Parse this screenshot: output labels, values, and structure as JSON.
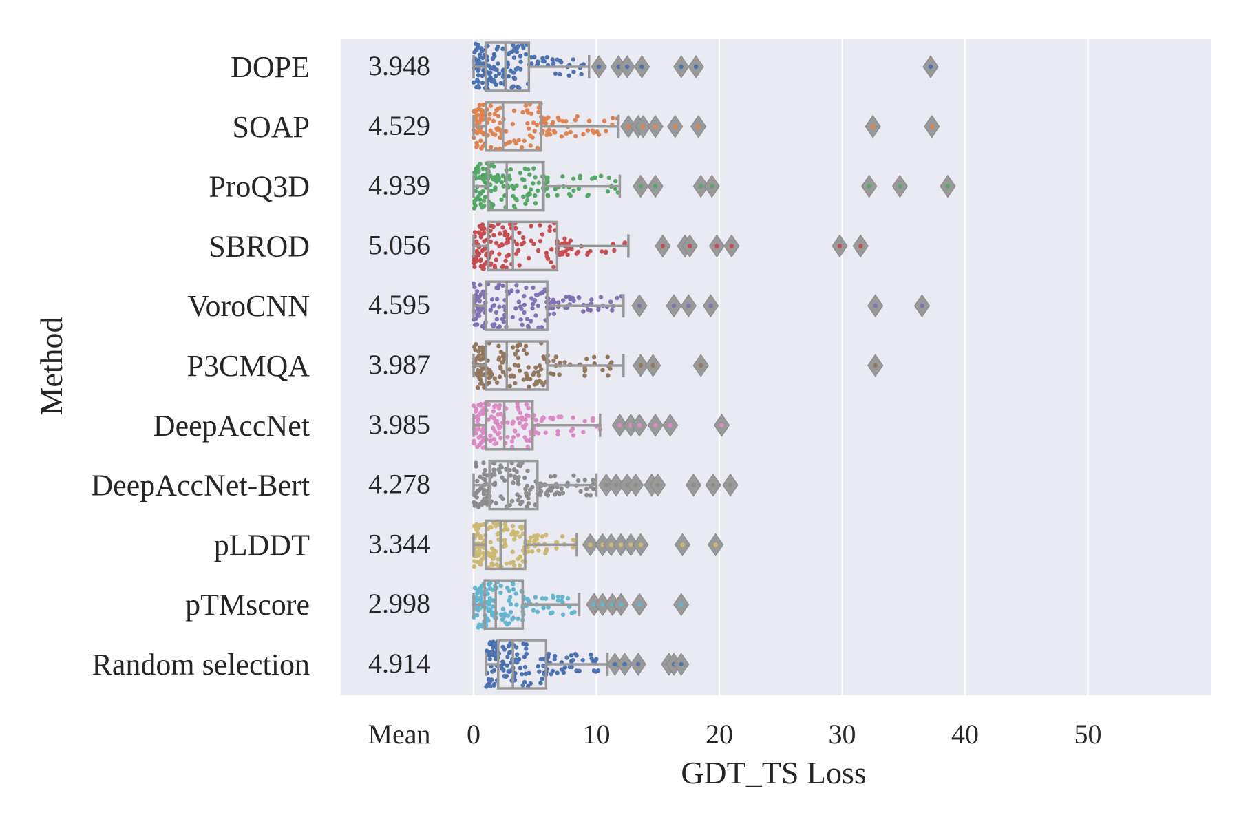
{
  "chart_data": {
    "type": "boxplot",
    "xlabel": "GDT_TS Loss",
    "ylabel": "Method",
    "mean_header": "Mean",
    "xlim": [
      -2,
      60
    ],
    "xticks": [
      0,
      10,
      20,
      30,
      40,
      50
    ],
    "grid": true,
    "background": "#eaeaf2",
    "box_color": "#999999",
    "series": [
      {
        "name": "DOPE",
        "mean_label": "3.948",
        "color": "#4c72b0",
        "q1": 1.0,
        "median": 2.6,
        "q3": 4.5,
        "whisker_low": 0,
        "whisker_high": 9.4,
        "outliers": [
          10.2,
          11.8,
          12.5,
          13.7,
          16.9,
          18.1,
          37.2
        ]
      },
      {
        "name": "SOAP",
        "mean_label": "4.529",
        "color": "#dd8452",
        "q1": 1.0,
        "median": 2.4,
        "q3": 5.5,
        "whisker_low": 0,
        "whisker_high": 11.8,
        "outliers": [
          12.6,
          13.4,
          13.8,
          14.8,
          16.4,
          18.3,
          32.5,
          37.3
        ]
      },
      {
        "name": "ProQ3D",
        "mean_label": "4.939",
        "color": "#55a868",
        "q1": 1.2,
        "median": 2.7,
        "q3": 5.7,
        "whisker_low": 0,
        "whisker_high": 11.9,
        "outliers": [
          13.6,
          14.8,
          18.5,
          19.4,
          32.2,
          34.7,
          38.6
        ]
      },
      {
        "name": "SBROD",
        "mean_label": "5.056",
        "color": "#c44e52",
        "q1": 1.2,
        "median": 3.2,
        "q3": 6.8,
        "whisker_low": 0,
        "whisker_high": 12.6,
        "outliers": [
          15.4,
          17.2,
          17.6,
          19.8,
          21.0,
          29.8,
          31.5
        ]
      },
      {
        "name": "VoroCNN",
        "mean_label": "4.595",
        "color": "#8172b3",
        "q1": 1.0,
        "median": 2.7,
        "q3": 6.0,
        "whisker_low": 0,
        "whisker_high": 12.2,
        "outliers": [
          13.5,
          16.3,
          17.5,
          19.3,
          32.7,
          36.5
        ]
      },
      {
        "name": "P3CMQA",
        "mean_label": "3.987",
        "color": "#937860",
        "q1": 1.0,
        "median": 2.7,
        "q3": 6.0,
        "whisker_low": 0,
        "whisker_high": 12.2,
        "outliers": [
          13.6,
          14.6,
          18.5,
          32.7
        ]
      },
      {
        "name": "DeepAccNet",
        "mean_label": "3.985",
        "color": "#da8bc3",
        "q1": 1.0,
        "median": 2.5,
        "q3": 4.8,
        "whisker_low": 0,
        "whisker_high": 10.3,
        "outliers": [
          11.9,
          12.8,
          13.5,
          14.8,
          16.0,
          20.2
        ]
      },
      {
        "name": "DeepAccNet-Bert",
        "mean_label": "4.278",
        "color": "#8c8c8c",
        "q1": 1.3,
        "median": 2.8,
        "q3": 5.2,
        "whisker_low": 0,
        "whisker_high": 10.0,
        "outliers": [
          10.8,
          11.6,
          12.5,
          13.2,
          14.5,
          15.0,
          17.9,
          19.5,
          20.9
        ]
      },
      {
        "name": "pLDDT",
        "mean_label": "3.344",
        "color": "#ccb974",
        "q1": 1.0,
        "median": 2.2,
        "q3": 4.2,
        "whisker_low": 0,
        "whisker_high": 8.4,
        "outliers": [
          9.5,
          10.5,
          11.2,
          12.0,
          12.8,
          13.6,
          17.0,
          19.7
        ]
      },
      {
        "name": "pTMscore",
        "mean_label": "2.998",
        "color": "#64b5cd",
        "q1": 0.9,
        "median": 1.8,
        "q3": 4.0,
        "whisker_low": 0,
        "whisker_high": 8.6,
        "outliers": [
          9.8,
          10.5,
          11.3,
          12.0,
          13.5,
          16.9
        ]
      },
      {
        "name": "Random selection",
        "mean_label": "4.914",
        "color": "#4c72b0",
        "q1": 2.0,
        "median": 3.2,
        "q3": 5.9,
        "whisker_low": 1.0,
        "whisker_high": 10.9,
        "outliers": [
          11.5,
          12.3,
          13.4,
          15.9,
          16.3,
          16.9
        ]
      }
    ]
  }
}
